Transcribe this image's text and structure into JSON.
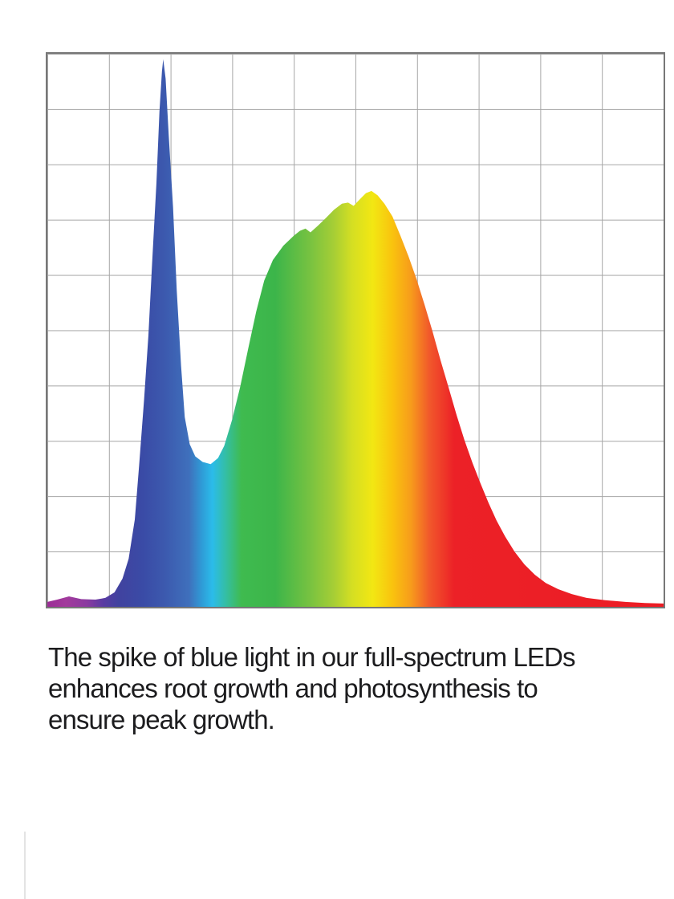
{
  "page": {
    "background_color": "#ffffff"
  },
  "chart": {
    "border_color": "#777777",
    "grid_color": "#a6a6a6"
  },
  "chart_data": {
    "type": "area",
    "title": "",
    "xlabel": "",
    "ylabel": "",
    "x_axis_note": "no tick labels shown; horizontal axis spans the visible light spectrum (violet to deep red), 10 unlabeled grid columns",
    "y_axis_note": "no tick labels shown; vertical axis is relative spectral intensity 0-1, 10 unlabeled grid rows",
    "grid": {
      "columns": 10,
      "rows": 10,
      "visible": true
    },
    "legend": "none",
    "features": {
      "violet_bump": {
        "x": 0.035,
        "intensity": 0.02
      },
      "blue_spike_peak": {
        "x": 0.188,
        "intensity": 0.99
      },
      "cyan_dip": {
        "x": 0.265,
        "intensity": 0.26
      },
      "broad_yellow_peak": {
        "x": 0.526,
        "intensity": 0.75
      },
      "red_tail_end": {
        "x": 1.0,
        "intensity": 0.006
      }
    },
    "points": [
      [
        0.0,
        0.009
      ],
      [
        0.016,
        0.013
      ],
      [
        0.035,
        0.019
      ],
      [
        0.055,
        0.014
      ],
      [
        0.078,
        0.013
      ],
      [
        0.094,
        0.016
      ],
      [
        0.109,
        0.026
      ],
      [
        0.122,
        0.051
      ],
      [
        0.132,
        0.087
      ],
      [
        0.142,
        0.158
      ],
      [
        0.149,
        0.256
      ],
      [
        0.157,
        0.375
      ],
      [
        0.164,
        0.491
      ],
      [
        0.17,
        0.621
      ],
      [
        0.177,
        0.766
      ],
      [
        0.182,
        0.896
      ],
      [
        0.186,
        0.968
      ],
      [
        0.188,
        0.99
      ],
      [
        0.192,
        0.955
      ],
      [
        0.197,
        0.852
      ],
      [
        0.204,
        0.722
      ],
      [
        0.21,
        0.572
      ],
      [
        0.217,
        0.436
      ],
      [
        0.223,
        0.343
      ],
      [
        0.231,
        0.294
      ],
      [
        0.24,
        0.272
      ],
      [
        0.252,
        0.262
      ],
      [
        0.265,
        0.258
      ],
      [
        0.277,
        0.269
      ],
      [
        0.287,
        0.291
      ],
      [
        0.3,
        0.339
      ],
      [
        0.313,
        0.398
      ],
      [
        0.326,
        0.467
      ],
      [
        0.339,
        0.534
      ],
      [
        0.352,
        0.59
      ],
      [
        0.366,
        0.627
      ],
      [
        0.383,
        0.653
      ],
      [
        0.4,
        0.671
      ],
      [
        0.41,
        0.68
      ],
      [
        0.419,
        0.684
      ],
      [
        0.427,
        0.677
      ],
      [
        0.439,
        0.689
      ],
      [
        0.452,
        0.703
      ],
      [
        0.465,
        0.718
      ],
      [
        0.478,
        0.729
      ],
      [
        0.488,
        0.731
      ],
      [
        0.497,
        0.725
      ],
      [
        0.508,
        0.738
      ],
      [
        0.517,
        0.748
      ],
      [
        0.526,
        0.752
      ],
      [
        0.536,
        0.744
      ],
      [
        0.547,
        0.729
      ],
      [
        0.56,
        0.706
      ],
      [
        0.573,
        0.671
      ],
      [
        0.586,
        0.634
      ],
      [
        0.599,
        0.593
      ],
      [
        0.612,
        0.547
      ],
      [
        0.625,
        0.498
      ],
      [
        0.638,
        0.446
      ],
      [
        0.651,
        0.397
      ],
      [
        0.664,
        0.347
      ],
      [
        0.677,
        0.301
      ],
      [
        0.69,
        0.26
      ],
      [
        0.703,
        0.223
      ],
      [
        0.716,
        0.188
      ],
      [
        0.729,
        0.156
      ],
      [
        0.743,
        0.127
      ],
      [
        0.758,
        0.1
      ],
      [
        0.774,
        0.077
      ],
      [
        0.791,
        0.058
      ],
      [
        0.809,
        0.043
      ],
      [
        0.829,
        0.032
      ],
      [
        0.851,
        0.023
      ],
      [
        0.875,
        0.016
      ],
      [
        0.905,
        0.012
      ],
      [
        0.938,
        0.009
      ],
      [
        0.97,
        0.007
      ],
      [
        1.0,
        0.006
      ]
    ],
    "gradient_stops": [
      [
        0.0,
        "#9B2D96"
      ],
      [
        0.03,
        "#A23A9C"
      ],
      [
        0.065,
        "#8A3AA0"
      ],
      [
        0.09,
        "#5A3BA2"
      ],
      [
        0.115,
        "#41429F"
      ],
      [
        0.155,
        "#3A4BA6"
      ],
      [
        0.19,
        "#3C59AE"
      ],
      [
        0.23,
        "#3F70BC"
      ],
      [
        0.25,
        "#2F9AD6"
      ],
      [
        0.268,
        "#2BBCEA"
      ],
      [
        0.292,
        "#35BE9C"
      ],
      [
        0.315,
        "#3FBB4F"
      ],
      [
        0.37,
        "#3CB54A"
      ],
      [
        0.425,
        "#76C241"
      ],
      [
        0.465,
        "#A6CE35"
      ],
      [
        0.495,
        "#D5DF22"
      ],
      [
        0.528,
        "#F2E713"
      ],
      [
        0.56,
        "#F9C30E"
      ],
      [
        0.59,
        "#F79C1B"
      ],
      [
        0.62,
        "#F1582B"
      ],
      [
        0.66,
        "#EC2127"
      ],
      [
        1.0,
        "#EC1C24"
      ]
    ]
  },
  "caption": {
    "color": "#1c1c1e",
    "lines": [
      "The spike of blue light in our full-spectrum LEDs",
      "enhances root growth and photosynthesis to",
      "ensure peak growth."
    ],
    "full_text": "The spike of blue light in our full-spectrum LEDs enhances root growth and photosynthesis to ensure peak growth."
  }
}
